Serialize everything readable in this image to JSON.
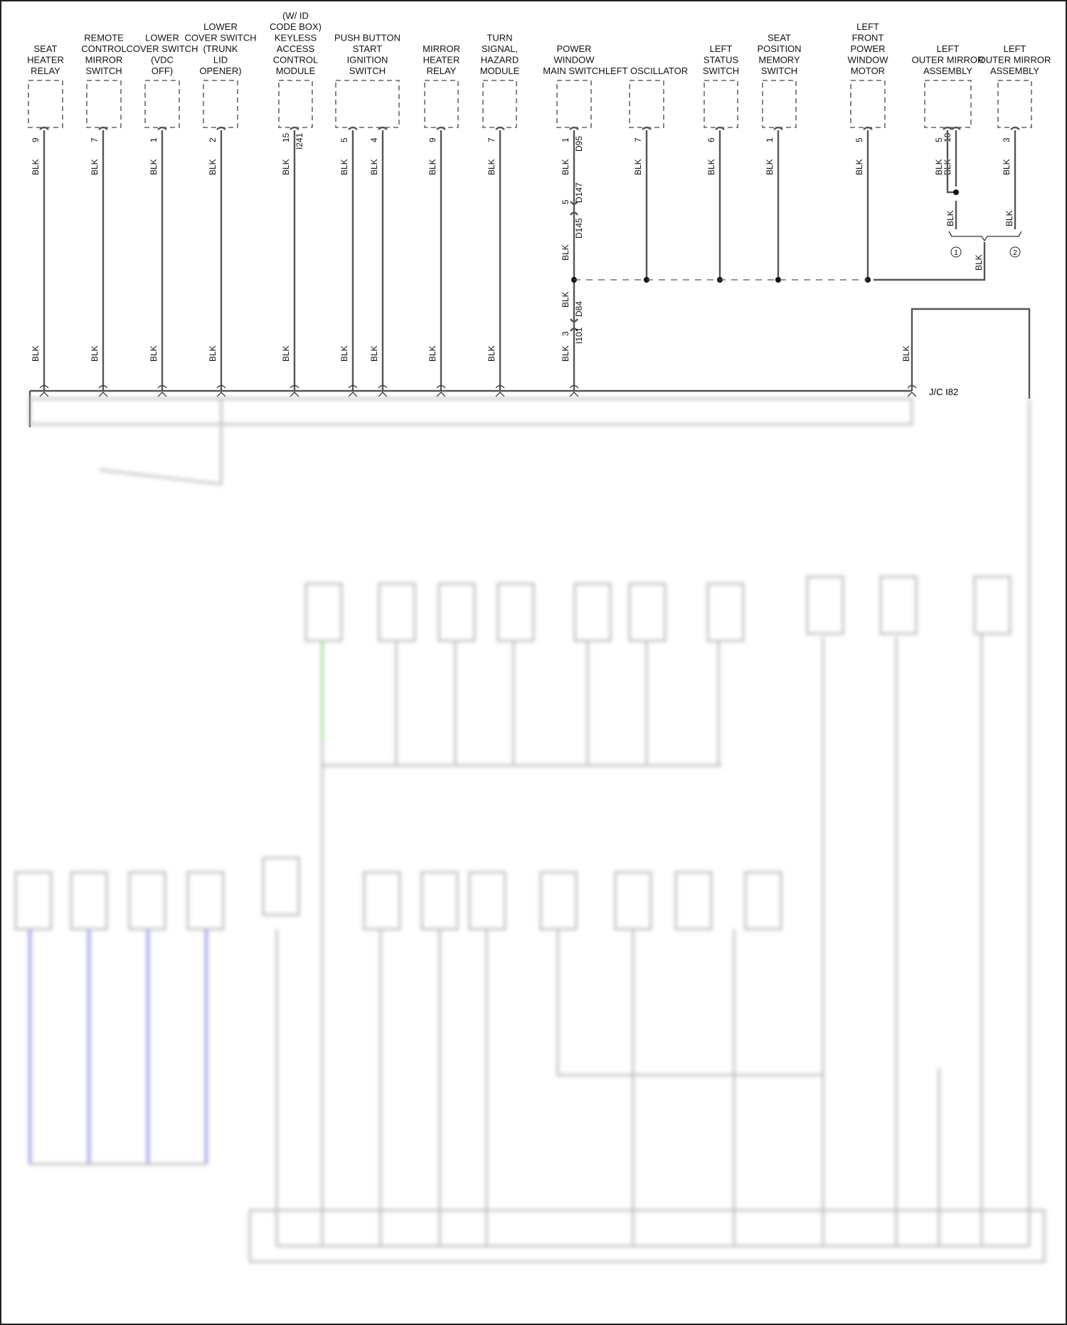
{
  "wire_color": "BLK",
  "components": [
    {
      "id": "seat-heater-relay",
      "label": [
        "SEAT",
        "HEATER",
        "RELAY"
      ],
      "pins": [
        "9"
      ]
    },
    {
      "id": "remote-control-mirror-switch",
      "label": [
        "REMOTE",
        "CONTROL",
        "MIRROR",
        "SWITCH"
      ],
      "pins": [
        "7"
      ]
    },
    {
      "id": "lower-cover-switch-vdc-off",
      "label": [
        "LOWER",
        "COVER SWITCH",
        "(VDC",
        "OFF)"
      ],
      "pins": [
        "1"
      ]
    },
    {
      "id": "lower-cover-switch-trunk-lid-opener",
      "label": [
        "LOWER",
        "COVER SWITCH",
        "(TRUNK",
        "LID",
        "OPENER)"
      ],
      "pins": [
        "2"
      ]
    },
    {
      "id": "keyless-access-control-module",
      "label": [
        "(W/ ID",
        "CODE BOX)",
        "KEYLESS",
        "ACCESS",
        "CONTROL",
        "MODULE"
      ],
      "pins": [
        "15"
      ],
      "connector": "I241"
    },
    {
      "id": "push-button-start-ignition-switch",
      "label": [
        "PUSH BUTTON",
        "START",
        "IGNITION",
        "SWITCH"
      ],
      "pins": [
        "5",
        "4"
      ]
    },
    {
      "id": "mirror-heater-relay",
      "label": [
        "MIRROR",
        "HEATER",
        "RELAY"
      ],
      "pins": [
        "9"
      ]
    },
    {
      "id": "turn-signal-hazard-module",
      "label": [
        "TURN",
        "SIGNAL,",
        "HAZARD",
        "MODULE"
      ],
      "pins": [
        "7"
      ]
    },
    {
      "id": "power-window-main-switch",
      "label": [
        "POWER",
        "WINDOW",
        "MAIN SWITCH"
      ],
      "pins": [
        "1"
      ],
      "connector": "D95"
    },
    {
      "id": "left-oscillator",
      "label": [
        "LEFT OSCILLATOR"
      ],
      "pins": [
        "7"
      ]
    },
    {
      "id": "left-status-switch",
      "label": [
        "LEFT",
        "STATUS",
        "SWITCH"
      ],
      "pins": [
        "6"
      ]
    },
    {
      "id": "seat-position-memory-switch",
      "label": [
        "SEAT",
        "POSITION",
        "MEMORY",
        "SWITCH"
      ],
      "pins": [
        "1"
      ]
    },
    {
      "id": "left-front-power-window-motor",
      "label": [
        "LEFT",
        "FRONT",
        "POWER",
        "WINDOW",
        "MOTOR"
      ],
      "pins": [
        "5"
      ]
    },
    {
      "id": "left-outer-mirror-assembly-1",
      "label": [
        "LEFT",
        "OUTER MIRROR",
        "ASSEMBLY"
      ],
      "pins": [
        "5",
        "10"
      ]
    },
    {
      "id": "left-outer-mirror-assembly-2",
      "label": [
        "LEFT",
        "OUTER MIRROR",
        "ASSEMBLY"
      ],
      "pins": [
        "3"
      ]
    }
  ],
  "inline_connectors": {
    "d147_pin": "5",
    "d147": "D147",
    "d145": "D145",
    "d84": "D84",
    "i101_pin": "3",
    "i101": "I101"
  },
  "variant_markers": [
    "1",
    "2"
  ],
  "junction": {
    "label": "J/C I82"
  },
  "colors": {
    "wire": "#555555",
    "highlight_green": "#8bd17c",
    "highlight_blue": "#9b9bf0"
  }
}
